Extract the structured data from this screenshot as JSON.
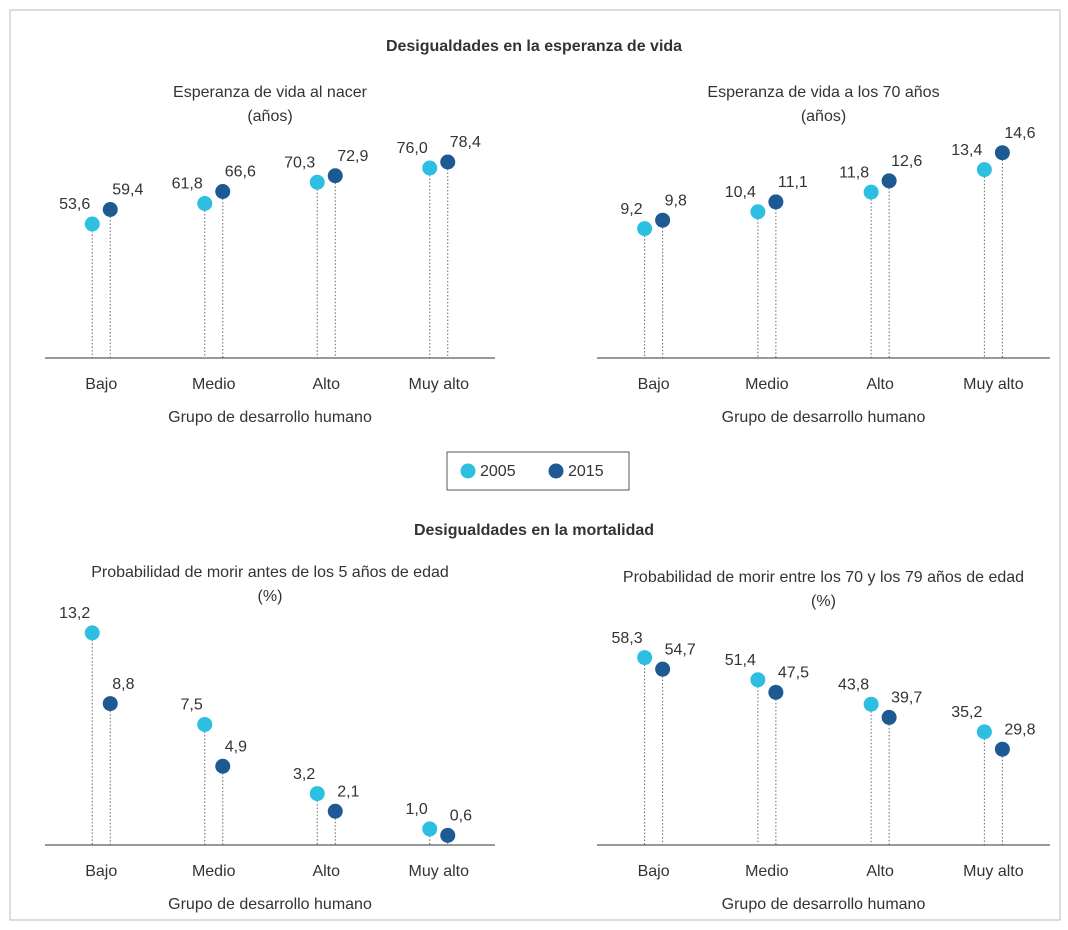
{
  "section_titles": [
    "Desigualdades en la esperanza de vida",
    "Desigualdades en la mortalidad"
  ],
  "chart_data": [
    {
      "type": "lollipop",
      "subtitle": [
        "Esperanza de vida al nacer",
        "(años)"
      ],
      "xlabel": "Grupo de desarrollo humano",
      "categories": [
        "Bajo",
        "Medio",
        "Alto",
        "Muy alto"
      ],
      "ylim": [
        0,
        90
      ],
      "series": [
        {
          "name": "2005",
          "color": "#2cbfe2",
          "values": [
            53.6,
            61.8,
            70.3,
            76.0
          ],
          "value_labels": [
            "53,6",
            "61,8",
            "70,3",
            "76,0"
          ]
        },
        {
          "name": "2015",
          "color": "#1d5a93",
          "values": [
            59.4,
            66.6,
            72.9,
            78.4
          ],
          "value_labels": [
            "59,4",
            "66,6",
            "72,9",
            "78,4"
          ]
        }
      ]
    },
    {
      "type": "lollipop",
      "subtitle": [
        "Esperanza de vida a los 70 años",
        "(años)"
      ],
      "xlabel": "Grupo de desarrollo humano",
      "categories": [
        "Bajo",
        "Medio",
        "Alto",
        "Muy alto"
      ],
      "ylim": [
        0,
        16
      ],
      "series": [
        {
          "name": "2005",
          "color": "#2cbfe2",
          "values": [
            9.2,
            10.4,
            11.8,
            13.4
          ],
          "value_labels": [
            "9,2",
            "10,4",
            "11,8",
            "13,4"
          ]
        },
        {
          "name": "2015",
          "color": "#1d5a93",
          "values": [
            9.8,
            11.1,
            12.6,
            14.6
          ],
          "value_labels": [
            "9,8",
            "11,1",
            "12,6",
            "14,6"
          ]
        }
      ]
    },
    {
      "type": "lollipop",
      "subtitle": [
        "Probabilidad de morir antes de los 5 años de edad",
        "(%)"
      ],
      "xlabel": "Grupo de desarrollo humano",
      "categories": [
        "Bajo",
        "Medio",
        "Alto",
        "Muy alto"
      ],
      "ylim": [
        0,
        14
      ],
      "series": [
        {
          "name": "2005",
          "color": "#2cbfe2",
          "values": [
            13.2,
            7.5,
            3.2,
            1.0
          ],
          "value_labels": [
            "13,2",
            "7,5",
            "3,2",
            "1,0"
          ]
        },
        {
          "name": "2015",
          "color": "#1d5a93",
          "values": [
            8.8,
            4.9,
            2.1,
            0.6
          ],
          "value_labels": [
            "8,8",
            "4,9",
            "2,1",
            "0,6"
          ]
        }
      ]
    },
    {
      "type": "lollipop",
      "subtitle": [
        "Probabilidad de morir entre los 70 y los 79 años de edad",
        "(%)"
      ],
      "xlabel": "Grupo de desarrollo humano",
      "categories": [
        "Bajo",
        "Medio",
        "Alto",
        "Muy alto"
      ],
      "ylim": [
        0,
        70
      ],
      "series": [
        {
          "name": "2005",
          "color": "#2cbfe2",
          "values": [
            58.3,
            51.4,
            43.8,
            35.2
          ],
          "value_labels": [
            "58,3",
            "51,4",
            "43,8",
            "35,2"
          ]
        },
        {
          "name": "2015",
          "color": "#1d5a93",
          "values": [
            54.7,
            47.5,
            39.7,
            29.8
          ],
          "value_labels": [
            "54,7",
            "47,5",
            "39,7",
            "29,8"
          ]
        }
      ]
    }
  ]
}
